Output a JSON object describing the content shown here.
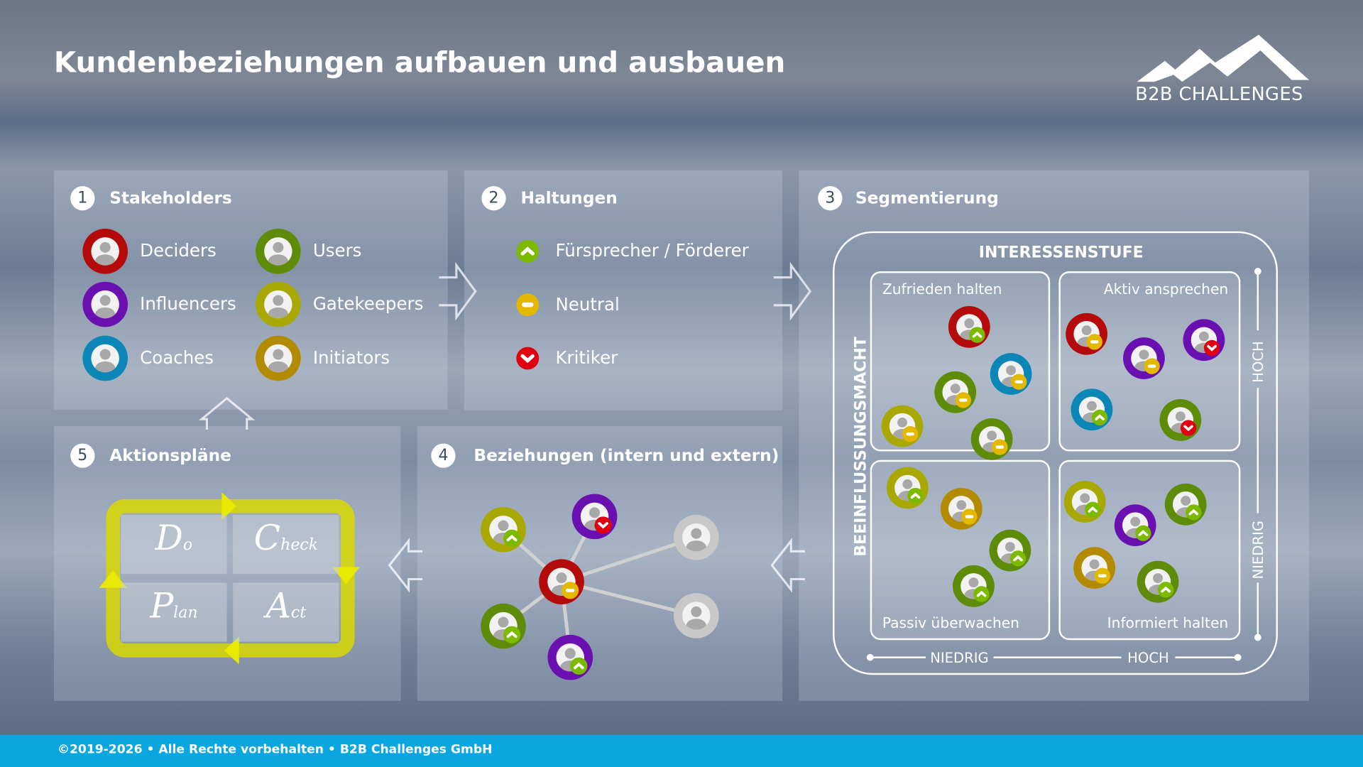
{
  "header": {
    "title": "Kundenbeziehungen aufbauen und ausbauen",
    "logo_text": "B2B CHALLENGES"
  },
  "colors": {
    "deciders": "#b40a0a",
    "influencers": "#6a0fb0",
    "coaches": "#0b86b6",
    "users": "#5e8c08",
    "gatekeepers": "#a9a800",
    "initiators": "#b38b00",
    "neutral_gray": "#c8c8c8",
    "up": "#7cba00",
    "neutral": "#e5b800",
    "down": "#e00010",
    "footer": "#0aa6e0",
    "pdca": "#e2e000"
  },
  "panels": {
    "stakeholders": {
      "number": "1",
      "title": "Stakeholders",
      "items": [
        {
          "label": "Deciders",
          "type": "deciders"
        },
        {
          "label": "Users",
          "type": "users"
        },
        {
          "label": "Influencers",
          "type": "influencers"
        },
        {
          "label": "Gatekeepers",
          "type": "gatekeepers"
        },
        {
          "label": "Coaches",
          "type": "coaches"
        },
        {
          "label": "Initiators",
          "type": "initiators"
        }
      ]
    },
    "haltungen": {
      "number": "2",
      "title": "Haltungen",
      "items": [
        {
          "label": "Fürsprecher / Förderer",
          "attitude": "up"
        },
        {
          "label": "Neutral",
          "attitude": "neutral"
        },
        {
          "label": "Kritiker",
          "attitude": "down"
        }
      ]
    },
    "segmentierung": {
      "number": "3",
      "title": "Segmentierung",
      "x_axis_title": "INTERESSENSTUFE",
      "y_axis_title": "BEEINFLUSSUNGSMACHT",
      "x_low": "NIEDRIG",
      "x_high": "HOCH",
      "y_low": "NIEDRIG",
      "y_high": "HOCH",
      "quadrants": [
        {
          "label": "Zufrieden halten",
          "avatars": [
            {
              "type": "deciders",
              "attitude": "up"
            },
            {
              "type": "coaches",
              "attitude": "neutral"
            },
            {
              "type": "users",
              "attitude": "neutral"
            },
            {
              "type": "gatekeepers",
              "attitude": "neutral"
            },
            {
              "type": "users",
              "attitude": "neutral"
            }
          ]
        },
        {
          "label": "Aktiv ansprechen",
          "avatars": [
            {
              "type": "deciders",
              "attitude": "neutral"
            },
            {
              "type": "influencers",
              "attitude": "neutral"
            },
            {
              "type": "influencers",
              "attitude": "down"
            },
            {
              "type": "coaches",
              "attitude": "up"
            },
            {
              "type": "users",
              "attitude": "down"
            }
          ]
        },
        {
          "label": "Passiv überwachen",
          "avatars": [
            {
              "type": "gatekeepers",
              "attitude": "up"
            },
            {
              "type": "initiators",
              "attitude": "neutral"
            },
            {
              "type": "users",
              "attitude": "up"
            },
            {
              "type": "users",
              "attitude": "up"
            }
          ]
        },
        {
          "label": "Informiert halten",
          "avatars": [
            {
              "type": "gatekeepers",
              "attitude": "up"
            },
            {
              "type": "users",
              "attitude": "up"
            },
            {
              "type": "influencers",
              "attitude": "up"
            },
            {
              "type": "initiators",
              "attitude": "neutral"
            },
            {
              "type": "users",
              "attitude": "up"
            }
          ]
        }
      ]
    },
    "beziehungen": {
      "number": "4",
      "title": "Beziehungen (intern und extern)",
      "center": {
        "type": "deciders",
        "attitude": "neutral"
      },
      "nodes": [
        {
          "type": "gatekeepers",
          "attitude": "up"
        },
        {
          "type": "influencers",
          "attitude": "down"
        },
        {
          "type": "neutral_gray",
          "attitude": null
        },
        {
          "type": "users",
          "attitude": "up"
        },
        {
          "type": "influencers",
          "attitude": "up"
        },
        {
          "type": "neutral_gray",
          "attitude": null
        }
      ]
    },
    "aktionsplaene": {
      "number": "5",
      "title": "Aktionspläne",
      "cycle": [
        {
          "big": "D",
          "small": "o"
        },
        {
          "big": "C",
          "small": "heck"
        },
        {
          "big": "P",
          "small": "lan"
        },
        {
          "big": "A",
          "small": "ct"
        }
      ]
    }
  },
  "footer": {
    "text": "©2019-2026 • Alle Rechte vorbehalten • B2B Challenges GmbH"
  }
}
